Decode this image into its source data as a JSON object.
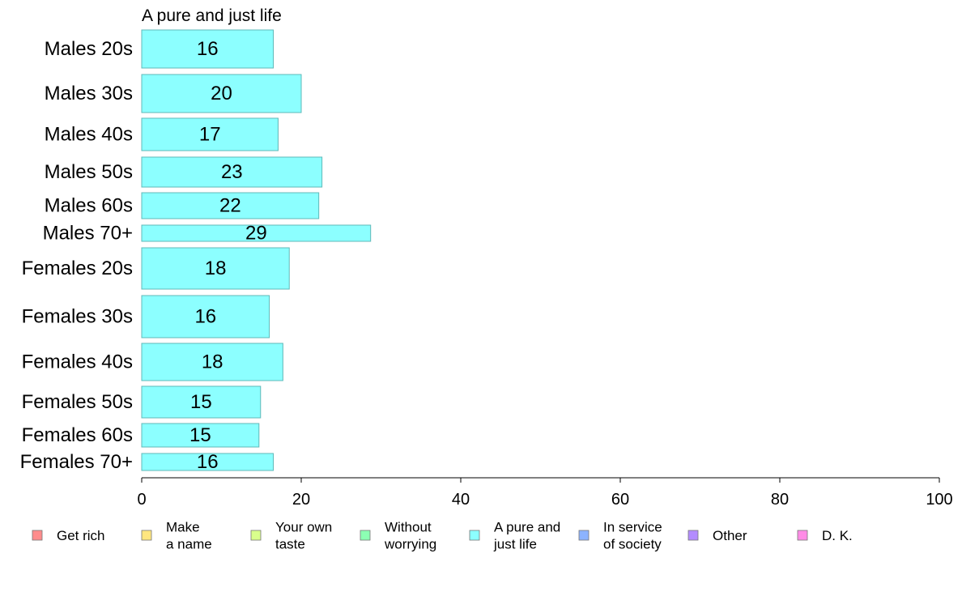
{
  "chart_data": {
    "type": "bar",
    "orientation": "horizontal",
    "title": "A pure and just life",
    "categories": [
      "Males 20s",
      "Males 30s",
      "Males 40s",
      "Males 50s",
      "Males 60s",
      "Males 70+",
      "Females 20s",
      "Females 30s",
      "Females 40s",
      "Females 50s",
      "Females 60s",
      "Females 70+"
    ],
    "series": [
      {
        "name": "A pure and just life",
        "values": [
          16,
          20,
          17,
          23,
          22,
          29,
          18,
          16,
          18,
          15,
          15,
          16
        ]
      }
    ],
    "bar_labels": [
      "16",
      "20",
      "17",
      "23",
      "22",
      "29",
      "18",
      "16",
      "18",
      "15",
      "15",
      "16"
    ],
    "bar_values_precise": [
      16.5,
      20.0,
      17.1,
      22.6,
      22.2,
      28.7,
      18.5,
      16.0,
      17.7,
      14.9,
      14.7,
      16.5
    ],
    "xlim": [
      0,
      100
    ],
    "xticks": [
      "0",
      "20",
      "40",
      "60",
      "80",
      "100"
    ],
    "grid": false,
    "legend_placement": "bottom",
    "legend": [
      {
        "label": [
          "Get rich"
        ],
        "color": "#ff8c8c"
      },
      {
        "label": [
          "Make",
          "a name"
        ],
        "color": "#ffe680"
      },
      {
        "label": [
          "Your own",
          "taste"
        ],
        "color": "#d9ff8c"
      },
      {
        "label": [
          "Without",
          "worrying"
        ],
        "color": "#8cffb3"
      },
      {
        "label": [
          "A pure and",
          "just life"
        ],
        "color": "#8cffff"
      },
      {
        "label": [
          "In service",
          "of society"
        ],
        "color": "#8cb3ff"
      },
      {
        "label": [
          "Other"
        ],
        "color": "#b38cff"
      },
      {
        "label": [
          "D. K."
        ],
        "color": "#ff8ce6"
      }
    ],
    "bar_color": "#8cffff",
    "bar_border_color": "#5fb8b8"
  }
}
